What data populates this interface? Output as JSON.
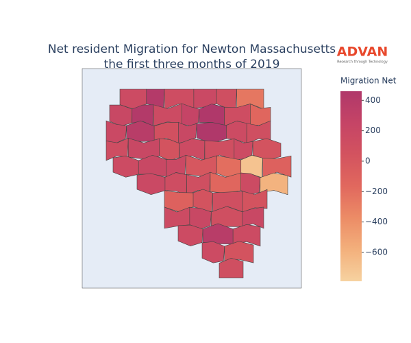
{
  "chart_data": {
    "type": "choropleth",
    "title": [
      "Net resident Migration for Newton Massachusetts",
      "the first three months of 2019"
    ],
    "values": [
      150,
      420,
      120,
      180,
      100,
      -250,
      200,
      430,
      150,
      250,
      460,
      120,
      -150,
      180,
      380,
      80,
      200,
      470,
      150,
      100,
      120,
      200,
      50,
      150,
      100,
      150,
      50,
      150,
      200,
      180,
      0,
      -200,
      -700,
      -100,
      180,
      120,
      100,
      -150,
      150,
      -600,
      -100,
      50,
      100,
      50,
      150,
      200,
      100,
      200,
      150,
      380,
      150,
      150,
      50,
      100
    ],
    "colorbar": {
      "title": "Migration Net",
      "zlim": [
        -790,
        460
      ],
      "ticks": [
        400,
        200,
        0,
        {
          "value": -200,
          "label": "−200"
        },
        {
          "value": -400,
          "label": "−400"
        },
        {
          "value": -600,
          "label": "−600"
        }
      ]
    },
    "colorscale": [
      "#f6d2a0",
      "#f3b07c",
      "#ec8c66",
      "#e1685e",
      "#d3535f",
      "#c54466",
      "#b0386a"
    ]
  },
  "logo": {
    "name": "ADVAN",
    "tagline": "Research through Technology"
  }
}
